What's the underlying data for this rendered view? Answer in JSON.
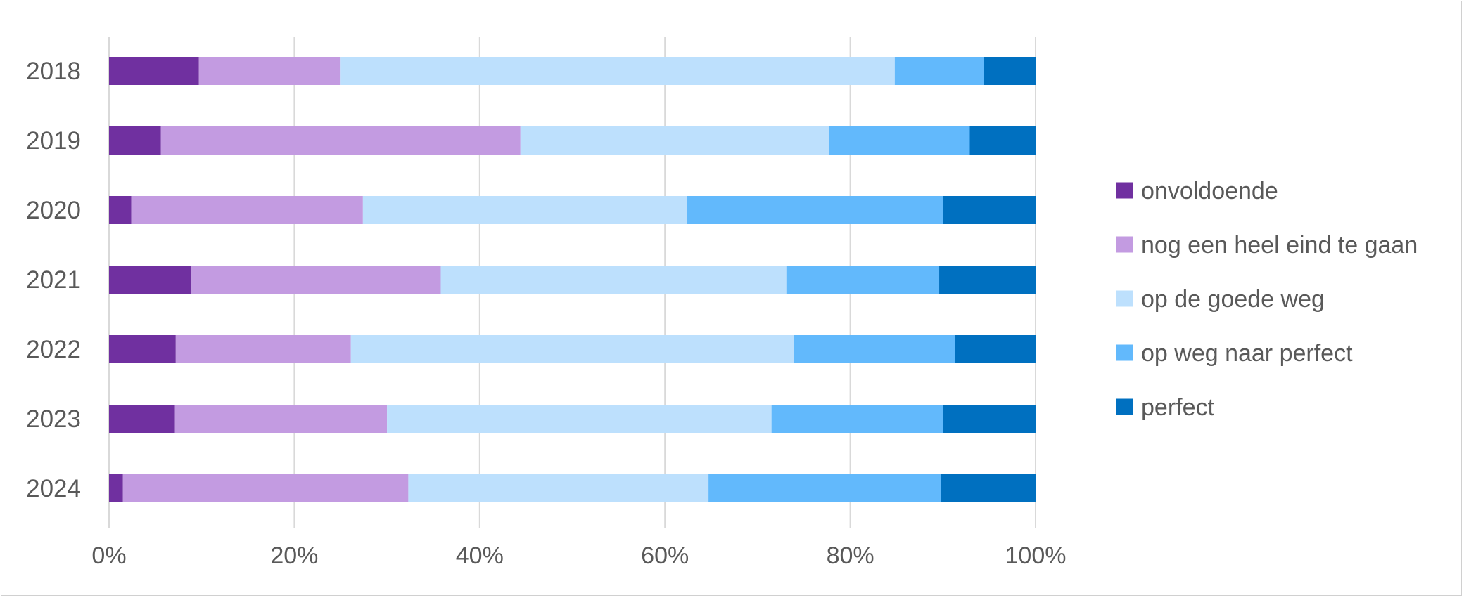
{
  "chart_data": {
    "type": "bar",
    "orientation": "horizontal",
    "stacked": "percent",
    "categories": [
      "2018",
      "2019",
      "2020",
      "2021",
      "2022",
      "2023",
      "2024"
    ],
    "series": [
      {
        "name": "onvoldoende",
        "color": "#7030A0",
        "values": [
          9.7,
          5.6,
          2.4,
          8.9,
          7.2,
          7.1,
          1.5
        ]
      },
      {
        "name": "nog een heel eind te gaan",
        "color": "#C39BE1",
        "values": [
          15.3,
          38.8,
          25.0,
          26.9,
          18.9,
          22.9,
          30.8
        ]
      },
      {
        "name": "op de goede weg",
        "color": "#BDE0FD",
        "values": [
          59.8,
          33.3,
          35.0,
          37.3,
          47.8,
          41.5,
          32.4
        ]
      },
      {
        "name": "op weg naar perfect",
        "color": "#62B9FC",
        "values": [
          9.6,
          15.2,
          27.6,
          16.5,
          17.4,
          18.5,
          25.1
        ]
      },
      {
        "name": "perfect",
        "color": "#0070C0",
        "values": [
          5.6,
          7.1,
          10.0,
          10.4,
          8.7,
          10.0,
          10.2
        ]
      }
    ],
    "xlim": [
      0,
      100
    ],
    "xticks": [
      "0%",
      "20%",
      "40%",
      "60%",
      "80%",
      "100%"
    ],
    "grid": true,
    "legend_position": "right",
    "title": "",
    "xlabel": "",
    "ylabel": ""
  }
}
